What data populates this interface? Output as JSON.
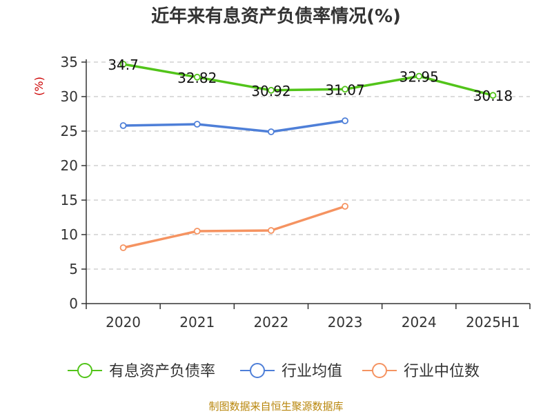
{
  "chart_data": {
    "type": "line",
    "title": "近年来有息资产负债率情况(%)",
    "ylabel": "(%)",
    "xlabel": "",
    "categories": [
      "2020",
      "2021",
      "2022",
      "2023",
      "2024",
      "2025H1"
    ],
    "ylim": [
      0,
      35
    ],
    "yticks": [
      0,
      5,
      10,
      15,
      20,
      25,
      30,
      35
    ],
    "grid": true,
    "legend_position": "bottom",
    "series": [
      {
        "name": "有息资产负债率",
        "color": "#52c41a",
        "values": [
          34.7,
          32.82,
          30.92,
          31.07,
          32.95,
          30.18
        ],
        "labels": [
          "34.7",
          "32.82",
          "30.92",
          "31.07",
          "32.95",
          "30.18"
        ]
      },
      {
        "name": "行业均值",
        "color": "#4e7fd8",
        "values": [
          25.8,
          26.0,
          24.9,
          26.5,
          null,
          null
        ]
      },
      {
        "name": "行业中位数",
        "color": "#f59361",
        "values": [
          8.1,
          10.5,
          10.6,
          14.1,
          null,
          null
        ]
      }
    ]
  },
  "footer": "制图数据来自恒生聚源数据库"
}
